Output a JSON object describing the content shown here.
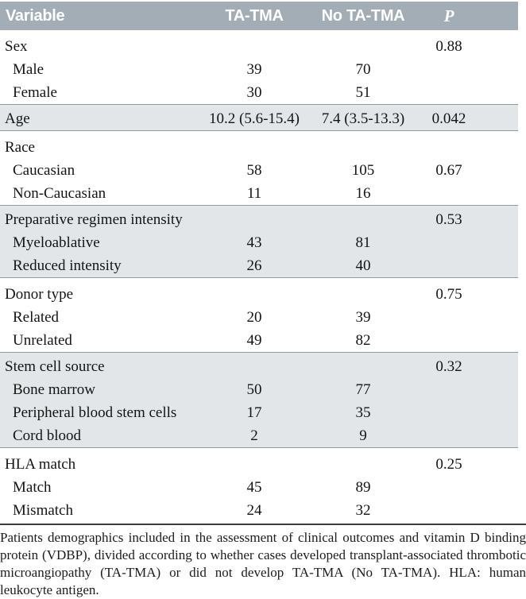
{
  "table": {
    "header": {
      "variable": "Variable",
      "ta_tma": "TA-TMA",
      "no_ta_tma": "No TA-TMA",
      "p": "P"
    },
    "rows": [
      {
        "label": "Sex",
        "ta": "",
        "no": "",
        "p": "0.88"
      },
      {
        "label": "Male",
        "ta": "39",
        "no": "70",
        "p": ""
      },
      {
        "label": "Female",
        "ta": "30",
        "no": "51",
        "p": ""
      },
      {
        "label": "Age",
        "ta": "10.2 (5.6-15.4)",
        "no": "7.4 (3.5-13.3)",
        "p": "0.042"
      },
      {
        "label": "Race",
        "ta": "",
        "no": "",
        "p": ""
      },
      {
        "label": "Caucasian",
        "ta": "58",
        "no": "105",
        "p": "0.67"
      },
      {
        "label": "Non-Caucasian",
        "ta": "11",
        "no": "16",
        "p": ""
      },
      {
        "label": "Preparative regimen intensity",
        "ta": "",
        "no": "",
        "p": "0.53"
      },
      {
        "label": "Myeloablative",
        "ta": "43",
        "no": "81",
        "p": ""
      },
      {
        "label": "Reduced intensity",
        "ta": "26",
        "no": "40",
        "p": ""
      },
      {
        "label": "Donor type",
        "ta": "",
        "no": "",
        "p": "0.75"
      },
      {
        "label": "Related",
        "ta": "20",
        "no": "39",
        "p": ""
      },
      {
        "label": "Unrelated",
        "ta": "49",
        "no": "82",
        "p": ""
      },
      {
        "label": "Stem cell source",
        "ta": "",
        "no": "",
        "p": "0.32"
      },
      {
        "label": "Bone marrow",
        "ta": "50",
        "no": "77",
        "p": ""
      },
      {
        "label": "Peripheral blood stem cells",
        "ta": "17",
        "no": "35",
        "p": ""
      },
      {
        "label": "Cord blood",
        "ta": "2",
        "no": "9",
        "p": ""
      },
      {
        "label": "HLA match",
        "ta": "",
        "no": "",
        "p": "0.25"
      },
      {
        "label": "Match",
        "ta": "45",
        "no": "89",
        "p": ""
      },
      {
        "label": "Mismatch",
        "ta": "24",
        "no": "32",
        "p": ""
      }
    ]
  },
  "footer": {
    "caption": "Patients demographics included in the assessment of clinical outcomes and vitamin D binding protein (VDBP), divided according to whether cases developed transplant-associated thrombotic microangiopathy (TA-TMA) or did not develop TA-TMA (No TA-TMA). HLA: human leukocyte antigen."
  },
  "colors": {
    "header_bg": "#a2adb5",
    "header_text": "#ffffff",
    "shaded_row_bg": "#e2e6e9",
    "band_border": "#8c9ba6",
    "caption_rule": "#3d3d3d"
  }
}
